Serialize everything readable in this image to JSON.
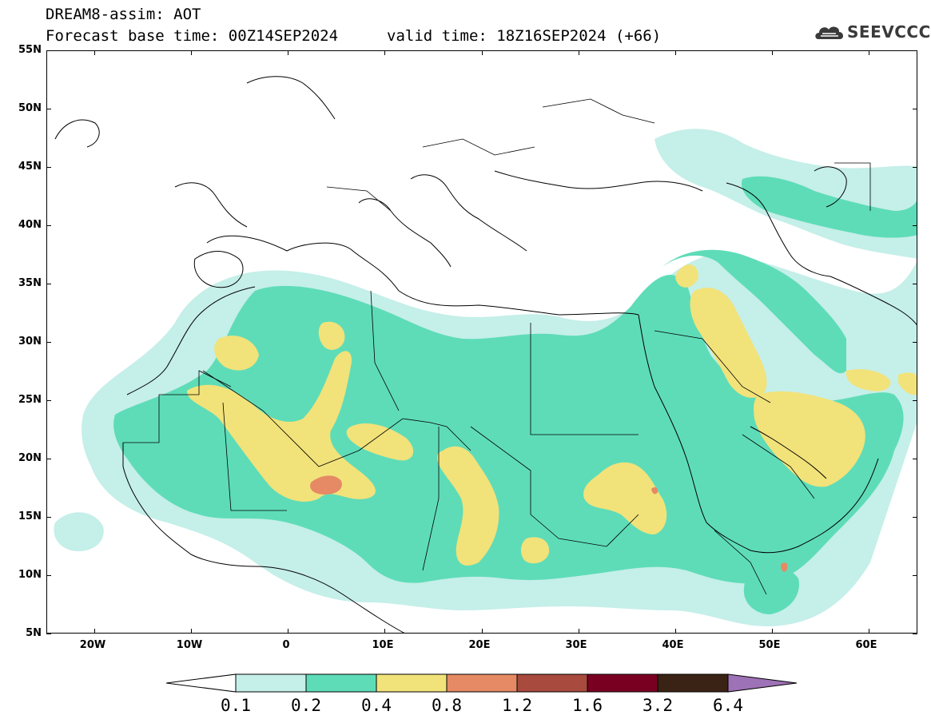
{
  "title": {
    "line1": "DREAM8-assim: AOT",
    "line2": "Forecast base time: 00Z14SEP2024",
    "valid": "valid time: 18Z16SEP2024 (+66)"
  },
  "logo": {
    "text": "SEEVCCC",
    "icon": "cloud-icon"
  },
  "map": {
    "lat_labels": [
      "55N",
      "50N",
      "45N",
      "40N",
      "35N",
      "30N",
      "25N",
      "20N",
      "15N",
      "10N",
      "5N"
    ],
    "lon_labels": [
      "20W",
      "10W",
      "0",
      "10E",
      "20E",
      "30E",
      "40E",
      "50E",
      "60E"
    ],
    "lat_range": [
      5,
      55
    ],
    "lon_range": [
      -25,
      65
    ]
  },
  "legend": {
    "levels": [
      "0.1",
      "0.2",
      "0.4",
      "0.8",
      "1.2",
      "1.6",
      "3.2",
      "6.4"
    ],
    "colors": {
      "below": "#ffffff",
      "c1": "#c5efe9",
      "c2": "#5edcb8",
      "c3": "#f2e27a",
      "c4": "#e58a64",
      "c5": "#a84a3e",
      "c6": "#7a0022",
      "c7": "#3a2214",
      "above": "#9e72b6"
    }
  }
}
